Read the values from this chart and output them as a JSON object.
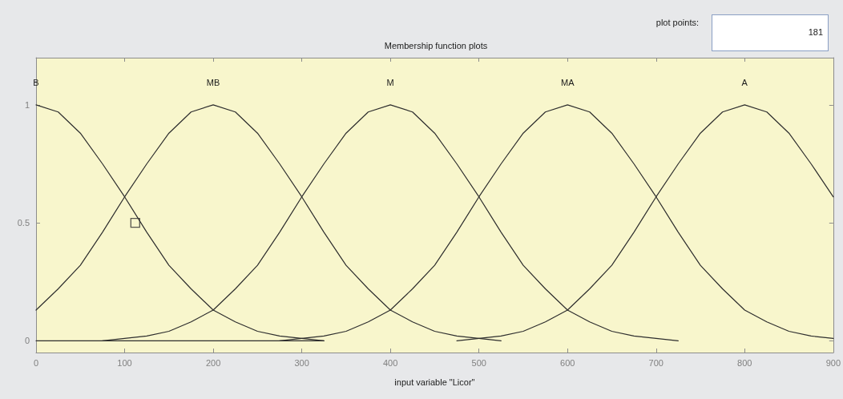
{
  "chart_data": {
    "type": "line",
    "title": "Membership function plots",
    "xlabel": "input variable \"Licor\"",
    "annotations": [
      "plot points:",
      "181"
    ],
    "xlim": [
      0,
      900
    ],
    "xticks": [
      0,
      100,
      200,
      300,
      400,
      500,
      600,
      700,
      800,
      900
    ],
    "ylim": [
      -0.05,
      1.2
    ],
    "yticks": [
      0,
      0.5,
      1
    ],
    "grid": false,
    "legend": false,
    "marker": "none",
    "line_style": "solid",
    "series": [
      {
        "name": "B",
        "color": "#2e2e2e",
        "x": [
          0,
          25,
          50,
          75,
          100,
          125,
          150,
          175,
          200,
          225,
          250,
          275,
          300,
          325
        ],
        "values": [
          1,
          0.97,
          0.88,
          0.75,
          0.61,
          0.46,
          0.32,
          0.22,
          0.13,
          0.08,
          0.04,
          0.02,
          0.01,
          0
        ]
      },
      {
        "name": "MB",
        "color": "#2e2e2e",
        "x": [
          0,
          25,
          50,
          75,
          100,
          125,
          150,
          175,
          200,
          225,
          250,
          275,
          300,
          325,
          350,
          375,
          400,
          425,
          450,
          475,
          500,
          525
        ],
        "values": [
          0.13,
          0.22,
          0.32,
          0.46,
          0.61,
          0.75,
          0.88,
          0.97,
          1,
          0.97,
          0.88,
          0.75,
          0.61,
          0.46,
          0.32,
          0.22,
          0.13,
          0.08,
          0.04,
          0.02,
          0.01,
          0
        ]
      },
      {
        "name": "M",
        "color": "#2e2e2e",
        "x": [
          75,
          100,
          125,
          150,
          175,
          200,
          225,
          250,
          275,
          300,
          325,
          350,
          375,
          400,
          425,
          450,
          475,
          500,
          525,
          550,
          575,
          600,
          625,
          650,
          675,
          700,
          725
        ],
        "values": [
          0,
          0.01,
          0.02,
          0.04,
          0.08,
          0.13,
          0.22,
          0.32,
          0.46,
          0.61,
          0.75,
          0.88,
          0.97,
          1,
          0.97,
          0.88,
          0.75,
          0.61,
          0.46,
          0.32,
          0.22,
          0.13,
          0.08,
          0.04,
          0.02,
          0.01,
          0
        ]
      },
      {
        "name": "MA",
        "color": "#2e2e2e",
        "x": [
          275,
          300,
          325,
          350,
          375,
          400,
          425,
          450,
          475,
          500,
          525,
          550,
          575,
          600,
          625,
          650,
          675,
          700,
          725,
          750,
          775,
          800,
          825,
          850,
          875,
          900
        ],
        "values": [
          0,
          0.01,
          0.02,
          0.04,
          0.08,
          0.13,
          0.22,
          0.32,
          0.46,
          0.61,
          0.75,
          0.88,
          0.97,
          1,
          0.97,
          0.88,
          0.75,
          0.61,
          0.46,
          0.32,
          0.22,
          0.13,
          0.08,
          0.04,
          0.02,
          0.01
        ]
      },
      {
        "name": "A",
        "color": "#2e2e2e",
        "x": [
          475,
          500,
          525,
          550,
          575,
          600,
          625,
          650,
          675,
          700,
          725,
          750,
          775,
          800,
          825,
          850,
          875,
          900
        ],
        "values": [
          0,
          0.01,
          0.02,
          0.04,
          0.08,
          0.13,
          0.22,
          0.32,
          0.46,
          0.61,
          0.75,
          0.88,
          0.97,
          1,
          0.97,
          0.88,
          0.75,
          0.61
        ]
      },
      {
        "color": "#2e2e2e",
        "x": [
          0,
          325
        ],
        "values": [
          0,
          0
        ]
      },
      {
        "type": "scatter",
        "marker": "square",
        "color": "#2e2e2e",
        "x": [
          112
        ],
        "values": [
          0.5
        ]
      }
    ]
  }
}
